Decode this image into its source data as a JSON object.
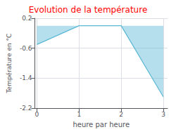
{
  "chart_data": {
    "type": "area",
    "title": "Evolution de la température",
    "ylabel": "Température en °C",
    "xlabel": "heure par heure",
    "x": [
      0,
      1,
      2,
      3
    ],
    "values": [
      -0.5,
      0.0,
      0.0,
      -1.9
    ],
    "color": "#5bb8d4",
    "title_color": "#ff0000",
    "xlim": [
      -0.05,
      3.1
    ],
    "xticks": [
      0,
      1,
      2,
      3
    ],
    "ylim": [
      -2.2,
      0.2
    ],
    "yticks": [
      0.2,
      -0.6,
      -1.4,
      -2.2
    ],
    "grid": true
  }
}
